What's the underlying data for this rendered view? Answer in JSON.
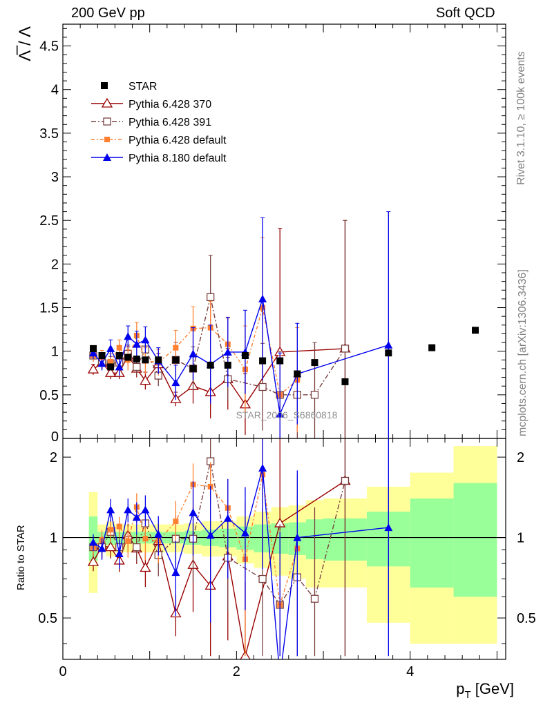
{
  "header": {
    "left": "200 GeV pp",
    "right": "Soft QCD"
  },
  "side_labels": {
    "rivet": "Rivet 3.1.10, ≥ 100k events",
    "mcplots": "mcplots.cern.ch [arXiv:1306.3436]"
  },
  "analysis_tag": "STAR_2006_S6860818",
  "colors": {
    "star": "#000000",
    "py370": "#990000",
    "py391": "#7a4040",
    "pydef": "#ff8030",
    "py8": "#0000ee",
    "band_inner": "#99ff99",
    "band_outer": "#ffff99"
  },
  "chart_data": [
    {
      "type": "scatter",
      "panel": "main",
      "ylabel": "Λ̅ / Λ",
      "xlim": [
        0,
        5.1
      ],
      "ylim": [
        0,
        4.75
      ],
      "yticks": [
        "0.5",
        "1",
        "1.5",
        "2",
        "2.5",
        "3",
        "3.5",
        "4",
        "4.5"
      ],
      "legend_position": "top-left",
      "series": [
        {
          "name": "STAR",
          "x": [
            0.35,
            0.45,
            0.55,
            0.65,
            0.75,
            0.85,
            0.95,
            1.1,
            1.3,
            1.5,
            1.7,
            1.9,
            2.1,
            2.3,
            2.5,
            2.7,
            2.9,
            3.25,
            3.75,
            4.25,
            4.75
          ],
          "y": [
            1.03,
            0.95,
            0.82,
            0.95,
            0.93,
            0.91,
            0.9,
            0.9,
            0.9,
            0.8,
            0.84,
            0.84,
            0.95,
            0.89,
            0.89,
            0.74,
            0.87,
            0.65,
            0.98,
            1.04,
            1.24
          ]
        },
        {
          "name": "Pythia 6.428 370",
          "x": [
            0.35,
            0.45,
            0.55,
            0.65,
            0.75,
            0.85,
            0.95,
            1.1,
            1.3,
            1.5,
            1.7,
            1.9,
            2.1,
            2.5,
            3.25
          ],
          "y": [
            0.79,
            0.87,
            0.75,
            0.75,
            0.95,
            0.8,
            0.66,
            0.85,
            0.45,
            0.6,
            0.53,
            0.68,
            0.39,
            0.99,
            1.03
          ],
          "err": [
            0.06,
            0.08,
            0.07,
            0.07,
            0.1,
            0.1,
            0.1,
            0.12,
            0.08,
            0.2,
            0.3,
            0.35,
            0.35,
            1.42,
            1.47
          ]
        },
        {
          "name": "Pythia 6.428 391",
          "x": [
            0.35,
            0.45,
            0.55,
            0.65,
            0.75,
            0.85,
            0.95,
            1.1,
            1.3,
            1.5,
            1.7,
            1.9,
            2.3,
            2.5,
            2.7,
            2.9,
            3.25
          ],
          "y": [
            0.95,
            0.87,
            0.86,
            0.87,
            0.97,
            0.82,
            1.02,
            0.72,
            0.9,
            0.8,
            1.62,
            0.68,
            0.59,
            0.5,
            0.5,
            0.5,
            1.03
          ],
          "err": [
            0.07,
            0.08,
            0.08,
            0.08,
            0.1,
            0.1,
            0.12,
            0.12,
            0.2,
            0.25,
            0.48,
            0.25,
            0.5,
            0.5,
            0.5,
            0.6,
            1.47
          ]
        },
        {
          "name": "Pythia 6.428 default",
          "x": [
            0.35,
            0.45,
            0.55,
            0.65,
            0.75,
            0.85,
            0.95,
            1.1,
            1.3,
            1.5,
            1.7,
            1.9,
            2.1,
            2.3,
            2.5,
            2.7
          ],
          "y": [
            0.95,
            0.93,
            0.88,
            1.04,
            0.9,
            1.18,
            0.89,
            0.87,
            1.04,
            1.26,
            1.27,
            1.08,
            0.79,
            1.5,
            0.5,
            0.67
          ],
          "err": [
            0.07,
            0.08,
            0.09,
            0.09,
            0.12,
            0.15,
            0.15,
            0.15,
            0.2,
            0.25,
            0.3,
            0.3,
            0.5,
            0.8,
            0.45,
            0.6
          ]
        },
        {
          "name": "Pythia 8.180 default",
          "x": [
            0.35,
            0.45,
            0.55,
            0.65,
            0.75,
            0.85,
            0.95,
            1.1,
            1.3,
            1.5,
            1.7,
            1.9,
            2.1,
            2.3,
            2.5,
            2.7,
            3.75
          ],
          "y": [
            0.98,
            0.86,
            1.03,
            0.82,
            1.17,
            1.08,
            1.13,
            0.89,
            0.64,
            0.97,
            0.85,
            0.99,
            0.99,
            1.6,
            0.28,
            0.74,
            1.07
          ],
          "err": [
            0.07,
            0.08,
            0.1,
            0.1,
            0.12,
            0.15,
            0.15,
            0.15,
            0.2,
            0.3,
            0.45,
            0.4,
            0.48,
            0.93,
            0.7,
            0.58,
            1.53
          ]
        }
      ]
    },
    {
      "type": "line",
      "panel": "ratio",
      "ylabel": "Ratio to STAR",
      "xlabel": "p_T [GeV]",
      "xlim": [
        0,
        5.1
      ],
      "ylim": [
        0.35,
        2.35
      ],
      "xticks": [
        "0",
        "2",
        "4"
      ],
      "yticks": [
        "0.5",
        "1",
        "2"
      ],
      "bands": {
        "edges": [
          0.3,
          0.4,
          0.5,
          0.6,
          0.7,
          0.8,
          0.9,
          1.0,
          1.2,
          1.4,
          1.6,
          1.8,
          2.0,
          2.2,
          2.4,
          2.6,
          2.8,
          3.0,
          3.5,
          4.0,
          4.5,
          5.0
        ],
        "outer": [
          [
            0.62,
            1.48
          ],
          [
            0.88,
            1.12
          ],
          [
            0.85,
            1.15
          ],
          [
            0.88,
            1.12
          ],
          [
            0.88,
            1.12
          ],
          [
            0.88,
            1.12
          ],
          [
            0.88,
            1.12
          ],
          [
            0.88,
            1.12
          ],
          [
            0.88,
            1.12
          ],
          [
            0.87,
            1.13
          ],
          [
            0.85,
            1.15
          ],
          [
            0.85,
            1.15
          ],
          [
            0.8,
            1.2
          ],
          [
            0.77,
            1.25
          ],
          [
            0.72,
            1.3
          ],
          [
            0.7,
            1.32
          ],
          [
            0.65,
            1.38
          ],
          [
            0.65,
            1.4
          ],
          [
            0.48,
            1.55
          ],
          [
            0.4,
            1.75
          ],
          [
            0.4,
            2.2
          ],
          [
            0.4,
            2.35
          ]
        ],
        "inner": [
          [
            0.82,
            1.2
          ],
          [
            0.95,
            1.05
          ],
          [
            0.94,
            1.06
          ],
          [
            0.95,
            1.05
          ],
          [
            0.95,
            1.05
          ],
          [
            0.95,
            1.05
          ],
          [
            0.95,
            1.05
          ],
          [
            0.95,
            1.05
          ],
          [
            0.95,
            1.05
          ],
          [
            0.94,
            1.06
          ],
          [
            0.93,
            1.07
          ],
          [
            0.92,
            1.08
          ],
          [
            0.9,
            1.1
          ],
          [
            0.88,
            1.12
          ],
          [
            0.87,
            1.13
          ],
          [
            0.86,
            1.14
          ],
          [
            0.83,
            1.17
          ],
          [
            0.82,
            1.18
          ],
          [
            0.78,
            1.25
          ],
          [
            0.65,
            1.4
          ],
          [
            0.6,
            1.6
          ],
          [
            0.55,
            1.8
          ]
        ]
      },
      "series": [
        {
          "name": "Pythia 6.428 370",
          "x": [
            0.35,
            0.45,
            0.55,
            0.65,
            0.75,
            0.85,
            0.95,
            1.1,
            1.3,
            1.5,
            1.7,
            1.9,
            2.1,
            2.5,
            3.25
          ],
          "y": [
            0.81,
            0.93,
            0.92,
            0.82,
            1.02,
            0.91,
            0.77,
            0.97,
            0.52,
            0.79,
            0.66,
            0.85,
            0.36,
            1.13,
            1.63
          ]
        },
        {
          "name": "Pythia 6.428 391",
          "x": [
            0.35,
            0.45,
            0.55,
            0.65,
            0.75,
            0.85,
            0.95,
            1.1,
            1.3,
            1.5,
            1.7,
            1.9,
            2.3,
            2.5,
            2.7,
            2.9,
            3.25
          ],
          "y": [
            0.92,
            0.92,
            1.05,
            0.92,
            0.98,
            0.92,
            1.13,
            0.86,
            0.99,
            0.99,
            1.93,
            0.84,
            0.7,
            0.56,
            0.71,
            0.59,
            1.63
          ]
        },
        {
          "name": "Pythia 6.428 default",
          "x": [
            0.35,
            0.45,
            0.55,
            0.65,
            0.75,
            0.85,
            0.95,
            1.1,
            1.3,
            1.5,
            1.7,
            1.9,
            2.1,
            2.3,
            2.5,
            2.7
          ],
          "y": [
            0.92,
            0.98,
            1.07,
            1.1,
            0.97,
            1.3,
            0.99,
            0.97,
            1.15,
            1.58,
            1.55,
            1.29,
            0.83,
            1.72,
            0.56,
            0.91
          ]
        },
        {
          "name": "Pythia 8.180 default",
          "x": [
            0.35,
            0.45,
            0.55,
            0.65,
            0.75,
            0.85,
            0.95,
            1.1,
            1.3,
            1.5,
            1.7,
            1.9,
            2.1,
            2.3,
            2.5,
            2.7,
            3.75
          ],
          "y": [
            0.96,
            0.91,
            1.27,
            0.87,
            1.27,
            1.19,
            1.27,
            1.03,
            0.74,
            1.24,
            1.02,
            1.18,
            1.04,
            1.82,
            0.3,
            1.0,
            1.09
          ]
        }
      ]
    }
  ]
}
